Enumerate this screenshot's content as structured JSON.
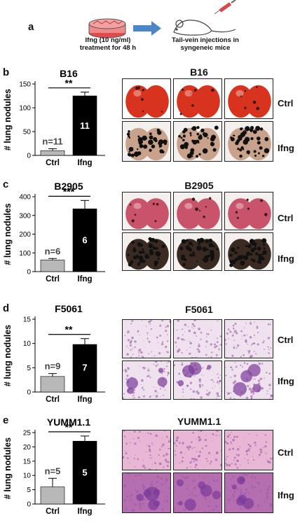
{
  "panel_a": {
    "letter": "a",
    "treatment_line1": "Ifng (10 ng/ml)",
    "treatment_line2": "treatment for 48 h",
    "injection_line1": "Tail-vein injections in",
    "injection_line2": "syngeneic mice"
  },
  "row_labels": {
    "ctrl": "Ctrl",
    "ifng": "Ifng"
  },
  "panels": [
    {
      "letter": "b",
      "photo_title": "B16",
      "tissue": "lung-photo"
    },
    {
      "letter": "c",
      "photo_title": "B2905",
      "tissue": "lung-photo"
    },
    {
      "letter": "d",
      "photo_title": "F5061",
      "tissue": "histology"
    },
    {
      "letter": "e",
      "photo_title": "YUMM1.1",
      "tissue": "histology"
    }
  ],
  "chart_data": [
    {
      "type": "bar",
      "title": "B16",
      "ylabel": "# lung nodules",
      "categories": [
        "Ctrl",
        "Ifng"
      ],
      "values": [
        10,
        125
      ],
      "errors": [
        4,
        8
      ],
      "ylim": [
        0,
        150
      ],
      "yticks": [
        0,
        50,
        100,
        150
      ],
      "n_labels": [
        "n=11",
        "11"
      ],
      "significance": "**",
      "colors": [
        "#b8b8b8",
        "#000000"
      ]
    },
    {
      "type": "bar",
      "title": "B2905",
      "ylabel": "# lung nodules",
      "categories": [
        "Ctrl",
        "Ifng"
      ],
      "values": [
        62,
        335
      ],
      "errors": [
        8,
        45
      ],
      "ylim": [
        0,
        400
      ],
      "yticks": [
        0,
        100,
        200,
        300,
        400
      ],
      "n_labels": [
        "n=6",
        "6"
      ],
      "significance": "***",
      "colors": [
        "#b8b8b8",
        "#000000"
      ]
    },
    {
      "type": "bar",
      "title": "F5061",
      "ylabel": "# lung nodules",
      "categories": [
        "Ctrl",
        "Ifng"
      ],
      "values": [
        3.2,
        9.8
      ],
      "errors": [
        0.6,
        1.2
      ],
      "ylim": [
        0,
        15
      ],
      "yticks": [
        0,
        5,
        10,
        15
      ],
      "n_labels": [
        "n=9",
        "7"
      ],
      "significance": "**",
      "colors": [
        "#b8b8b8",
        "#000000"
      ]
    },
    {
      "type": "bar",
      "title": "YUMM1.1",
      "ylabel": "# lung nodules",
      "categories": [
        "Ctrl",
        "Ifng"
      ],
      "values": [
        6,
        22
      ],
      "errors": [
        3,
        1.8
      ],
      "ylim": [
        0,
        25
      ],
      "yticks": [
        0,
        5,
        10,
        15,
        20,
        25
      ],
      "n_labels": [
        "n=5",
        "5"
      ],
      "significance": "**",
      "colors": [
        "#b8b8b8",
        "#000000"
      ]
    }
  ]
}
